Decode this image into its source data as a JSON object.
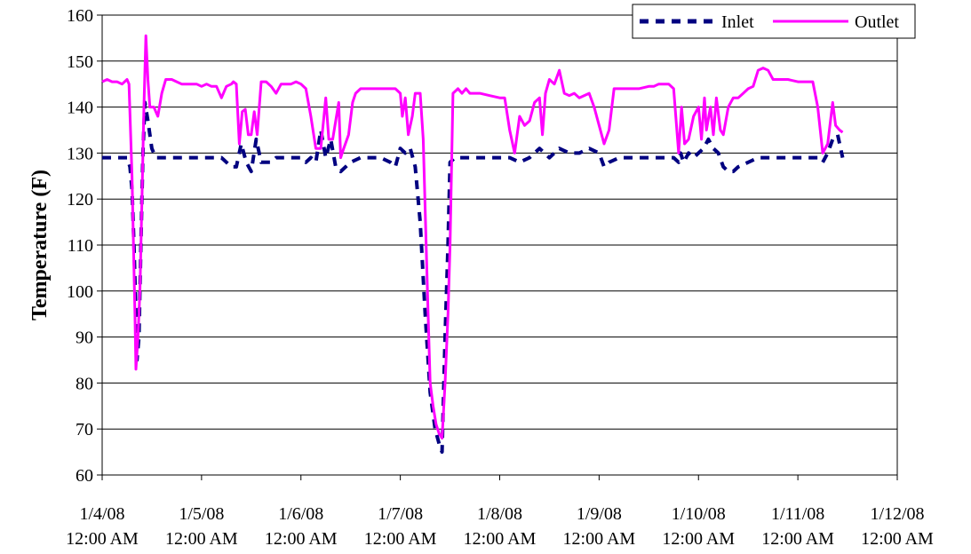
{
  "chart_data": {
    "type": "line",
    "title": "",
    "xlabel": "",
    "ylabel": "Temperature (F)",
    "ylim": [
      60,
      160
    ],
    "yticks": [
      60,
      70,
      80,
      90,
      100,
      110,
      120,
      130,
      140,
      150,
      160
    ],
    "grid": "horizontal",
    "legend_position": "top-right",
    "x_unit": "days",
    "x_ticks": [
      {
        "x": 0,
        "date": "1/4/08",
        "time": "12:00 AM"
      },
      {
        "x": 1,
        "date": "1/5/08",
        "time": "12:00 AM"
      },
      {
        "x": 2,
        "date": "1/6/08",
        "time": "12:00 AM"
      },
      {
        "x": 3,
        "date": "1/7/08",
        "time": "12:00 AM"
      },
      {
        "x": 4,
        "date": "1/8/08",
        "time": "12:00 AM"
      },
      {
        "x": 5,
        "date": "1/9/08",
        "time": "12:00 AM"
      },
      {
        "x": 6,
        "date": "1/10/08",
        "time": "12:00 AM"
      },
      {
        "x": 7,
        "date": "1/11/08",
        "time": "12:00 AM"
      },
      {
        "x": 8,
        "date": "1/12/08",
        "time": "12:00 AM"
      }
    ],
    "xlim": [
      0,
      8
    ],
    "series": [
      {
        "name": "Inlet",
        "color": "#000080",
        "style": "dashed",
        "points": [
          [
            0.0,
            129
          ],
          [
            0.1,
            129
          ],
          [
            0.2,
            129
          ],
          [
            0.25,
            129
          ],
          [
            0.28,
            127
          ],
          [
            0.3,
            122
          ],
          [
            0.32,
            110
          ],
          [
            0.34,
            95
          ],
          [
            0.35,
            85
          ],
          [
            0.37,
            90
          ],
          [
            0.39,
            110
          ],
          [
            0.41,
            130
          ],
          [
            0.43,
            141
          ],
          [
            0.46,
            137
          ],
          [
            0.5,
            131
          ],
          [
            0.54,
            129
          ],
          [
            0.6,
            129
          ],
          [
            0.7,
            129
          ],
          [
            0.8,
            129
          ],
          [
            0.9,
            129
          ],
          [
            1.0,
            129
          ],
          [
            1.1,
            129
          ],
          [
            1.2,
            129
          ],
          [
            1.3,
            127
          ],
          [
            1.35,
            127
          ],
          [
            1.4,
            132
          ],
          [
            1.45,
            128
          ],
          [
            1.5,
            126
          ],
          [
            1.55,
            133
          ],
          [
            1.6,
            128
          ],
          [
            1.65,
            128
          ],
          [
            1.7,
            128
          ],
          [
            1.75,
            129
          ],
          [
            1.85,
            129
          ],
          [
            2.0,
            129
          ],
          [
            2.05,
            128
          ],
          [
            2.1,
            129
          ],
          [
            2.15,
            128
          ],
          [
            2.2,
            135
          ],
          [
            2.25,
            129
          ],
          [
            2.3,
            133
          ],
          [
            2.35,
            127
          ],
          [
            2.4,
            126
          ],
          [
            2.45,
            127
          ],
          [
            2.5,
            128
          ],
          [
            2.6,
            129
          ],
          [
            2.7,
            129
          ],
          [
            2.8,
            129
          ],
          [
            2.9,
            128
          ],
          [
            2.95,
            127
          ],
          [
            3.0,
            131
          ],
          [
            3.05,
            130
          ],
          [
            3.1,
            131
          ],
          [
            3.15,
            127
          ],
          [
            3.2,
            115
          ],
          [
            3.25,
            95
          ],
          [
            3.3,
            78
          ],
          [
            3.35,
            70
          ],
          [
            3.4,
            66
          ],
          [
            3.42,
            65
          ],
          [
            3.45,
            90
          ],
          [
            3.48,
            110
          ],
          [
            3.5,
            128
          ],
          [
            3.55,
            129
          ],
          [
            3.6,
            129
          ],
          [
            3.7,
            129
          ],
          [
            3.8,
            129
          ],
          [
            3.9,
            129
          ],
          [
            4.0,
            129
          ],
          [
            4.1,
            129
          ],
          [
            4.2,
            128
          ],
          [
            4.3,
            129
          ],
          [
            4.35,
            130
          ],
          [
            4.4,
            131
          ],
          [
            4.45,
            130
          ],
          [
            4.5,
            129
          ],
          [
            4.55,
            130
          ],
          [
            4.6,
            131
          ],
          [
            4.7,
            130
          ],
          [
            4.8,
            130
          ],
          [
            4.9,
            131
          ],
          [
            5.0,
            130
          ],
          [
            5.05,
            127
          ],
          [
            5.1,
            128
          ],
          [
            5.2,
            129
          ],
          [
            5.3,
            129
          ],
          [
            5.4,
            129
          ],
          [
            5.5,
            129
          ],
          [
            5.6,
            129
          ],
          [
            5.7,
            129
          ],
          [
            5.75,
            129
          ],
          [
            5.8,
            128
          ],
          [
            5.82,
            130
          ],
          [
            5.85,
            128
          ],
          [
            5.9,
            130
          ],
          [
            5.95,
            129
          ],
          [
            6.0,
            130
          ],
          [
            6.05,
            131
          ],
          [
            6.1,
            133
          ],
          [
            6.15,
            131
          ],
          [
            6.2,
            130
          ],
          [
            6.25,
            127
          ],
          [
            6.3,
            126
          ],
          [
            6.35,
            126
          ],
          [
            6.4,
            127
          ],
          [
            6.5,
            128
          ],
          [
            6.6,
            129
          ],
          [
            6.7,
            129
          ],
          [
            6.8,
            129
          ],
          [
            6.9,
            129
          ],
          [
            7.0,
            129
          ],
          [
            7.1,
            129
          ],
          [
            7.2,
            129
          ],
          [
            7.25,
            128
          ],
          [
            7.3,
            130
          ],
          [
            7.35,
            133
          ],
          [
            7.4,
            134
          ],
          [
            7.45,
            129
          ]
        ]
      },
      {
        "name": "Outlet",
        "color": "#ff00ff",
        "style": "solid",
        "points": [
          [
            0.0,
            145.5
          ],
          [
            0.05,
            146
          ],
          [
            0.1,
            145.5
          ],
          [
            0.15,
            145.5
          ],
          [
            0.2,
            145
          ],
          [
            0.25,
            146
          ],
          [
            0.27,
            145
          ],
          [
            0.3,
            125
          ],
          [
            0.32,
            105
          ],
          [
            0.33,
            95
          ],
          [
            0.34,
            83
          ],
          [
            0.36,
            90
          ],
          [
            0.38,
            100
          ],
          [
            0.4,
            120
          ],
          [
            0.42,
            140
          ],
          [
            0.44,
            155.5
          ],
          [
            0.46,
            146
          ],
          [
            0.48,
            140
          ],
          [
            0.5,
            140
          ],
          [
            0.52,
            140
          ],
          [
            0.54,
            139
          ],
          [
            0.56,
            138
          ],
          [
            0.6,
            143
          ],
          [
            0.64,
            146
          ],
          [
            0.7,
            146
          ],
          [
            0.75,
            145.5
          ],
          [
            0.8,
            145
          ],
          [
            0.9,
            145
          ],
          [
            0.95,
            145
          ],
          [
            1.0,
            144.5
          ],
          [
            1.05,
            145
          ],
          [
            1.1,
            144.5
          ],
          [
            1.15,
            144.5
          ],
          [
            1.2,
            142
          ],
          [
            1.25,
            144.5
          ],
          [
            1.3,
            145
          ],
          [
            1.32,
            145.5
          ],
          [
            1.35,
            145
          ],
          [
            1.38,
            132
          ],
          [
            1.41,
            139
          ],
          [
            1.44,
            139.5
          ],
          [
            1.47,
            134
          ],
          [
            1.5,
            134
          ],
          [
            1.53,
            139
          ],
          [
            1.56,
            134
          ],
          [
            1.6,
            145.5
          ],
          [
            1.65,
            145.5
          ],
          [
            1.7,
            144.5
          ],
          [
            1.75,
            143
          ],
          [
            1.8,
            145
          ],
          [
            1.85,
            145
          ],
          [
            1.9,
            145
          ],
          [
            1.95,
            145.5
          ],
          [
            2.0,
            145
          ],
          [
            2.05,
            144
          ],
          [
            2.1,
            138
          ],
          [
            2.15,
            131
          ],
          [
            2.2,
            131
          ],
          [
            2.25,
            142
          ],
          [
            2.28,
            133
          ],
          [
            2.32,
            133
          ],
          [
            2.35,
            137
          ],
          [
            2.38,
            141
          ],
          [
            2.4,
            129
          ],
          [
            2.43,
            131
          ],
          [
            2.48,
            134
          ],
          [
            2.52,
            141
          ],
          [
            2.55,
            143
          ],
          [
            2.6,
            144
          ],
          [
            2.7,
            144
          ],
          [
            2.8,
            144
          ],
          [
            2.9,
            144
          ],
          [
            2.95,
            144
          ],
          [
            3.0,
            143
          ],
          [
            3.02,
            138
          ],
          [
            3.05,
            142
          ],
          [
            3.08,
            134
          ],
          [
            3.12,
            138
          ],
          [
            3.15,
            143
          ],
          [
            3.2,
            143
          ],
          [
            3.23,
            133
          ],
          [
            3.26,
            110
          ],
          [
            3.28,
            95
          ],
          [
            3.3,
            80
          ],
          [
            3.33,
            75
          ],
          [
            3.36,
            71
          ],
          [
            3.39,
            69
          ],
          [
            3.42,
            68
          ],
          [
            3.45,
            80
          ],
          [
            3.48,
            95
          ],
          [
            3.5,
            110
          ],
          [
            3.53,
            143
          ],
          [
            3.58,
            144
          ],
          [
            3.62,
            143
          ],
          [
            3.66,
            144
          ],
          [
            3.7,
            143
          ],
          [
            3.8,
            143
          ],
          [
            3.9,
            142.5
          ],
          [
            4.0,
            142
          ],
          [
            4.05,
            142
          ],
          [
            4.1,
            135
          ],
          [
            4.15,
            130
          ],
          [
            4.2,
            138
          ],
          [
            4.25,
            136
          ],
          [
            4.3,
            137
          ],
          [
            4.35,
            141
          ],
          [
            4.4,
            142
          ],
          [
            4.43,
            134
          ],
          [
            4.46,
            143
          ],
          [
            4.5,
            146
          ],
          [
            4.55,
            145
          ],
          [
            4.6,
            148
          ],
          [
            4.65,
            143
          ],
          [
            4.7,
            142.5
          ],
          [
            4.75,
            143
          ],
          [
            4.8,
            142
          ],
          [
            4.9,
            143
          ],
          [
            4.95,
            140
          ],
          [
            5.0,
            136
          ],
          [
            5.05,
            132
          ],
          [
            5.1,
            135
          ],
          [
            5.15,
            144
          ],
          [
            5.2,
            144
          ],
          [
            5.3,
            144
          ],
          [
            5.4,
            144
          ],
          [
            5.5,
            144.5
          ],
          [
            5.55,
            144.5
          ],
          [
            5.6,
            145
          ],
          [
            5.7,
            145
          ],
          [
            5.75,
            144
          ],
          [
            5.8,
            130
          ],
          [
            5.83,
            140
          ],
          [
            5.86,
            132
          ],
          [
            5.9,
            133
          ],
          [
            5.95,
            138
          ],
          [
            6.0,
            140
          ],
          [
            6.03,
            133
          ],
          [
            6.06,
            142
          ],
          [
            6.08,
            135
          ],
          [
            6.12,
            140
          ],
          [
            6.15,
            134
          ],
          [
            6.18,
            142
          ],
          [
            6.22,
            135
          ],
          [
            6.25,
            134
          ],
          [
            6.3,
            140
          ],
          [
            6.35,
            142
          ],
          [
            6.4,
            142
          ],
          [
            6.45,
            143
          ],
          [
            6.5,
            144
          ],
          [
            6.55,
            144.5
          ],
          [
            6.6,
            148
          ],
          [
            6.65,
            148.5
          ],
          [
            6.7,
            148
          ],
          [
            6.75,
            146
          ],
          [
            6.8,
            146
          ],
          [
            6.85,
            146
          ],
          [
            6.9,
            146
          ],
          [
            7.0,
            145.5
          ],
          [
            7.1,
            145.5
          ],
          [
            7.15,
            145.5
          ],
          [
            7.2,
            140
          ],
          [
            7.25,
            130
          ],
          [
            7.3,
            132
          ],
          [
            7.35,
            141
          ],
          [
            7.38,
            136
          ],
          [
            7.42,
            135
          ],
          [
            7.45,
            134.5
          ]
        ]
      }
    ]
  }
}
